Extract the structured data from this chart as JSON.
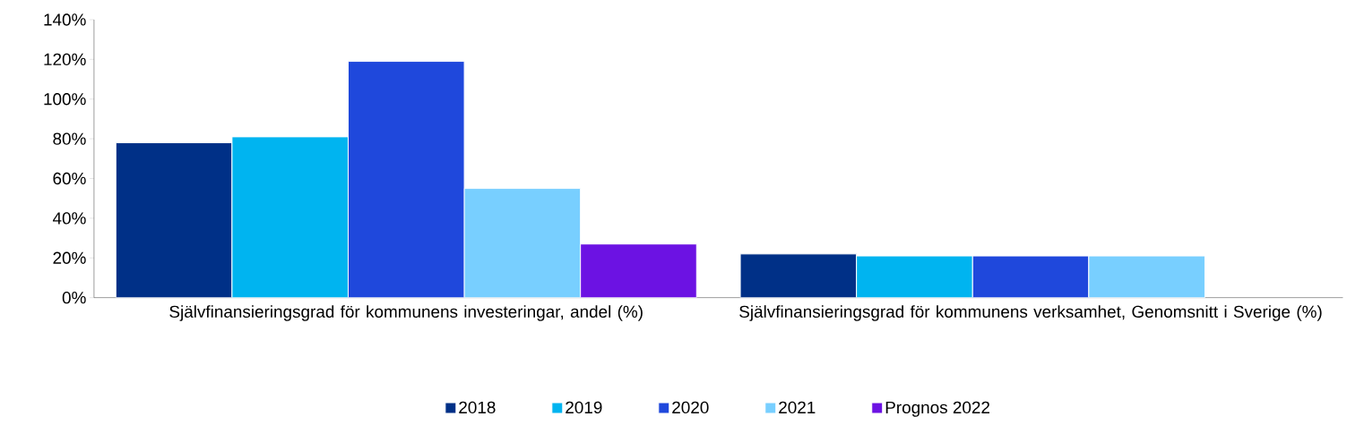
{
  "chart_data": {
    "type": "bar",
    "categories": [
      "Självfinansieringsgrad för kommunens investeringar, andel (%)",
      "Självfinansieringsgrad för kommunens verksamhet, Genomsnitt i Sverige (%)"
    ],
    "series": [
      {
        "name": "2018",
        "color": "#003087",
        "values": [
          78,
          22
        ]
      },
      {
        "name": "2019",
        "color": "#00b4f0",
        "values": [
          81,
          21
        ]
      },
      {
        "name": "2020",
        "color": "#1f48dc",
        "values": [
          119,
          21
        ]
      },
      {
        "name": "2021",
        "color": "#78cfff",
        "values": [
          55,
          21
        ]
      },
      {
        "name": "Prognos 2022",
        "color": "#6c12e3",
        "values": [
          27,
          null
        ]
      }
    ],
    "ylim": [
      0,
      140
    ],
    "yticks": [
      {
        "value": 0,
        "label": "0%"
      },
      {
        "value": 20,
        "label": "20%"
      },
      {
        "value": 40,
        "label": "40%"
      },
      {
        "value": 60,
        "label": "60%"
      },
      {
        "value": 80,
        "label": "80%"
      },
      {
        "value": 100,
        "label": "100%"
      },
      {
        "value": 120,
        "label": "120%"
      },
      {
        "value": 140,
        "label": "140%"
      }
    ],
    "grid": false,
    "legend": "bottom"
  }
}
